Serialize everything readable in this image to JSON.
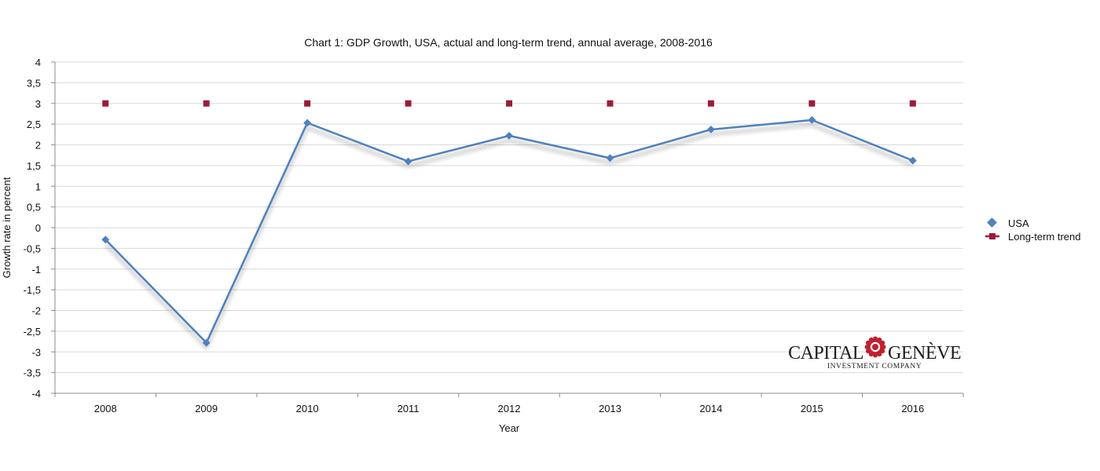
{
  "chart_data": {
    "type": "line",
    "title": "Chart 1: GDP Growth, USA, actual and long-term trend, annual average, 2008-2016",
    "xlabel": "Year",
    "ylabel": "Growth rate in percent",
    "categories": [
      "2008",
      "2009",
      "2010",
      "2011",
      "2012",
      "2013",
      "2014",
      "2015",
      "2016"
    ],
    "ylim": [
      -4,
      4
    ],
    "yticks": [
      4,
      3.5,
      3,
      2.5,
      2,
      1.5,
      1,
      0.5,
      0,
      -0.5,
      -1,
      -1.5,
      -2,
      -2.5,
      -3,
      -3.5,
      -4
    ],
    "ytick_labels": [
      "4",
      "3,5",
      "3",
      "2,5",
      "2",
      "1,5",
      "1",
      "0,5",
      "0",
      "-0,5",
      "-1",
      "-1,5",
      "-2",
      "-2,5",
      "-3",
      "-3,5",
      "-4"
    ],
    "grid": true,
    "legend_position": "right",
    "series": [
      {
        "name": "USA",
        "marker": "diamond",
        "color": "#4f81bd",
        "values": [
          -0.29,
          -2.78,
          2.53,
          1.6,
          2.22,
          1.68,
          2.37,
          2.6,
          1.62
        ]
      },
      {
        "name": "Long-term trend",
        "marker": "square",
        "color": "#9b1b3c",
        "values": [
          3,
          3,
          3,
          3,
          3,
          3,
          3,
          3,
          3
        ]
      }
    ]
  },
  "logo": {
    "brand_left": "CAPITAL",
    "brand_right": "GENÈVE",
    "tagline": "INVESTMENT COMPANY",
    "emblem_color": "#c0202e"
  }
}
